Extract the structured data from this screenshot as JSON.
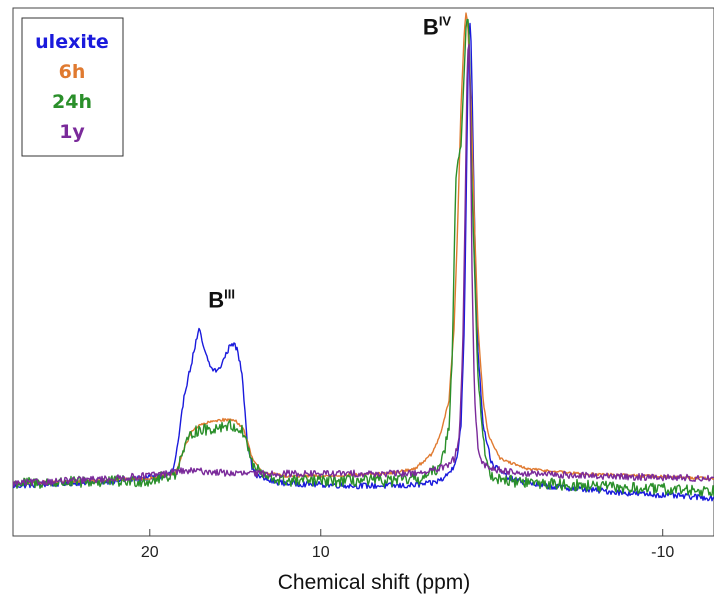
{
  "chart_data": {
    "type": "line",
    "title": "",
    "xlabel": "Chemical shift (ppm)",
    "ylabel": "",
    "xlim": [
      28,
      -13
    ],
    "x_reversed": true,
    "ylim": [
      0,
      1.0
    ],
    "xticks": [
      20,
      10,
      -10
    ],
    "xtick_labels": [
      "20",
      "10",
      "-10"
    ],
    "grid": false,
    "legend_position": "top-left",
    "legend": [
      {
        "name": "ulexite",
        "color": "#1a1adc"
      },
      {
        "name": "6h",
        "color": "#e07a30"
      },
      {
        "name": "24h",
        "color": "#2a8f2a"
      },
      {
        "name": "1y",
        "color": "#7a2a9a"
      }
    ],
    "annotations": [
      {
        "text": "B",
        "superscript": "III",
        "x": 15.8,
        "y": 0.39
      },
      {
        "text": "B",
        "superscript": "IV",
        "x": 3.2,
        "y": 0.95
      }
    ],
    "series": [
      {
        "name": "ulexite",
        "color": "#1a1adc",
        "noise": 0.006,
        "x": [
          28,
          22,
          19,
          18.6,
          18.3,
          18.0,
          17.6,
          17.3,
          17.1,
          16.8,
          16.4,
          16.0,
          15.6,
          15.2,
          14.9,
          14.6,
          14.3,
          14.0,
          13.7,
          13.3,
          13.0,
          12.0,
          8,
          5,
          3.5,
          2.8,
          2.3,
          2.0,
          1.8,
          1.6,
          1.5,
          1.4,
          1.3,
          1.2,
          1.0,
          0.8,
          0.5,
          0,
          -1,
          -3,
          -8,
          -13
        ],
        "y": [
          0.025,
          0.035,
          0.045,
          0.06,
          0.12,
          0.21,
          0.27,
          0.32,
          0.345,
          0.3,
          0.265,
          0.26,
          0.29,
          0.32,
          0.305,
          0.255,
          0.12,
          0.06,
          0.045,
          0.04,
          0.035,
          0.03,
          0.025,
          0.025,
          0.03,
          0.04,
          0.06,
          0.09,
          0.15,
          0.35,
          0.6,
          0.85,
          0.99,
          0.93,
          0.55,
          0.3,
          0.15,
          0.07,
          0.04,
          0.025,
          0.01,
          0.0
        ]
      },
      {
        "name": "6h",
        "color": "#e07a30",
        "noise": 0.003,
        "x": [
          28,
          20,
          18.5,
          18.0,
          17.5,
          17.0,
          16.5,
          16.0,
          15.5,
          15.0,
          14.5,
          14.0,
          13.5,
          13.0,
          12.0,
          10,
          6,
          4.5,
          3.5,
          3.0,
          2.5,
          2.2,
          2.0,
          1.8,
          1.6,
          1.5,
          1.4,
          1.2,
          1.0,
          0.8,
          0.5,
          0.2,
          -0.5,
          -2,
          -5,
          -13
        ],
        "y": [
          0.03,
          0.04,
          0.05,
          0.1,
          0.14,
          0.15,
          0.155,
          0.16,
          0.16,
          0.16,
          0.14,
          0.08,
          0.055,
          0.05,
          0.045,
          0.045,
          0.05,
          0.06,
          0.09,
          0.13,
          0.2,
          0.35,
          0.55,
          0.8,
          0.96,
          0.995,
          0.97,
          0.8,
          0.55,
          0.35,
          0.2,
          0.13,
          0.08,
          0.06,
          0.05,
          0.04
        ]
      },
      {
        "name": "24h",
        "color": "#2a8f2a",
        "noise": 0.012,
        "x": [
          28,
          20,
          18.5,
          18.0,
          17.5,
          17.0,
          16.5,
          16.0,
          15.5,
          15.0,
          14.5,
          14.0,
          13.5,
          13.0,
          12.0,
          10,
          6,
          4.0,
          3.2,
          2.8,
          2.5,
          2.3,
          2.2,
          2.1,
          2.0,
          1.8,
          1.6,
          1.5,
          1.4,
          1.3,
          1.2,
          1.0,
          0.8,
          0.5,
          0.3,
          0,
          -1,
          -3,
          -8,
          -13
        ],
        "y": [
          0.03,
          0.035,
          0.05,
          0.1,
          0.135,
          0.14,
          0.14,
          0.145,
          0.15,
          0.145,
          0.135,
          0.07,
          0.05,
          0.04,
          0.035,
          0.035,
          0.035,
          0.04,
          0.06,
          0.09,
          0.15,
          0.3,
          0.5,
          0.65,
          0.69,
          0.72,
          0.88,
          0.97,
          0.99,
          0.93,
          0.7,
          0.45,
          0.25,
          0.12,
          0.07,
          0.045,
          0.035,
          0.03,
          0.02,
          0.015
        ]
      },
      {
        "name": "1y",
        "color": "#7a2a9a",
        "noise": 0.007,
        "x": [
          28,
          22,
          19,
          18.5,
          17,
          15,
          13,
          11,
          8,
          5,
          3.5,
          2.6,
          2.2,
          1.9,
          1.7,
          1.55,
          1.45,
          1.35,
          1.25,
          1.15,
          1.0,
          0.8,
          0.5,
          0,
          -2,
          -6,
          -13
        ],
        "y": [
          0.03,
          0.04,
          0.05,
          0.055,
          0.055,
          0.05,
          0.05,
          0.05,
          0.05,
          0.05,
          0.055,
          0.065,
          0.08,
          0.12,
          0.3,
          0.6,
          0.85,
          0.96,
          0.8,
          0.45,
          0.2,
          0.1,
          0.07,
          0.06,
          0.05,
          0.045,
          0.04
        ]
      }
    ]
  }
}
